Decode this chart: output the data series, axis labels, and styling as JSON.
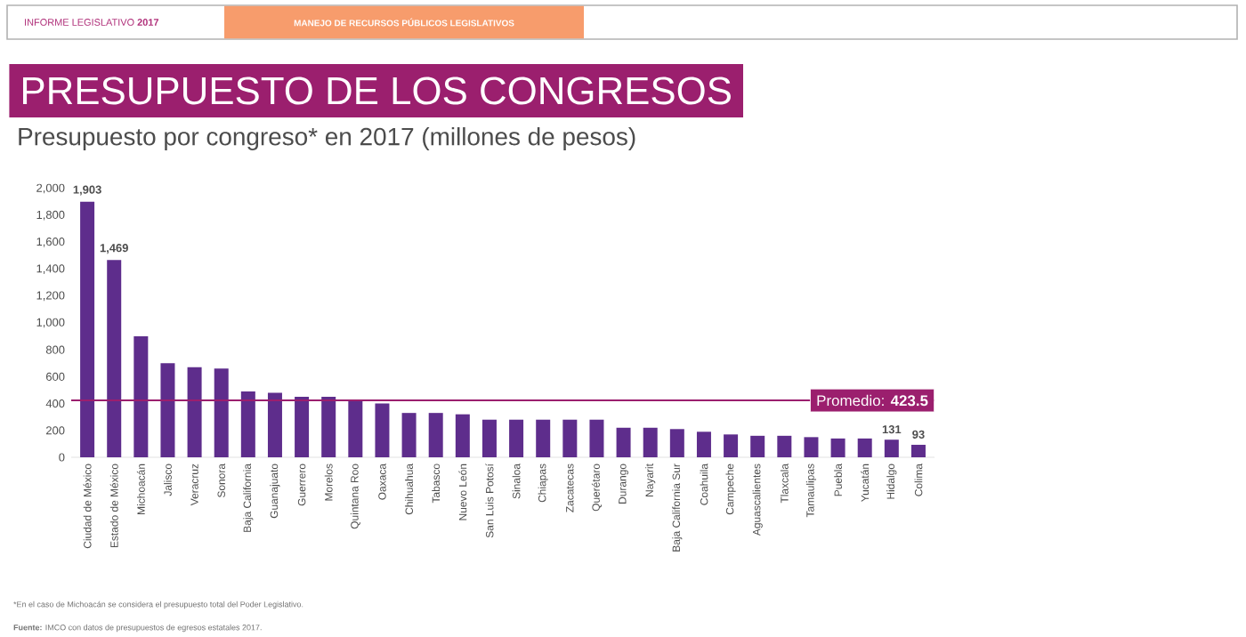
{
  "chart_data": {
    "type": "bar",
    "title": "PRESUPUESTO DE LOS CONGRESOS",
    "subtitle": "Presupuesto por congreso* en 2017 (millones de pesos)",
    "annotations": [
      "INFORME LEGISLATIVO **2017**",
      "MANEJO DE RECURSOS PÚBLICOS LEGISLATIVOS",
      "*En el caso de Michoacán se considera el presupuesto total del Poder Legislativo.",
      "**Fuente:** IMCO con datos de presupuestos de egresos estatales 2017."
    ],
    "categories": [
      "Ciudad de México",
      "Estado de México",
      "Michoacán",
      "Jalisco",
      "Veracruz",
      "Sonora",
      "Baja California",
      "Guanajuato",
      "Guerrero",
      "Morelos",
      "Quintana Roo",
      "Oaxaca",
      "Chihuahua",
      "Tabasco",
      "Nuevo León",
      "San Luis Potosí",
      "Sinaloa",
      "Chiapas",
      "Zacatecas",
      "Querétaro",
      "Durango",
      "Nayarit",
      "Baja California Sur",
      "Coahuila",
      "Campeche",
      "Aguascalientes",
      "Tlaxcala",
      "Tamaulipas",
      "Puebla",
      "Yucatán",
      "Hidalgo",
      "Colima"
    ],
    "values": [
      1903,
      1469,
      900,
      700,
      670,
      660,
      490,
      480,
      450,
      450,
      420,
      400,
      330,
      330,
      320,
      280,
      280,
      280,
      280,
      280,
      220,
      220,
      210,
      190,
      170,
      160,
      160,
      150,
      140,
      140,
      131,
      93
    ],
    "value_labels": [
      "1,903",
      "1,469",
      null,
      null,
      null,
      null,
      null,
      null,
      null,
      null,
      null,
      null,
      null,
      null,
      null,
      null,
      null,
      null,
      null,
      null,
      null,
      null,
      null,
      null,
      null,
      null,
      null,
      null,
      null,
      null,
      "131",
      "93"
    ],
    "color": "#5e2d8c",
    "ylim": [
      0,
      2000
    ],
    "yticks": [
      0,
      200,
      400,
      600,
      800,
      {
        "value": 1000,
        "label": "1,000"
      },
      {
        "value": 1200,
        "label": "1,200"
      },
      {
        "value": 1400,
        "label": "1,400"
      },
      {
        "value": 1600,
        "label": "1,600"
      },
      {
        "value": 1800,
        "label": "1,800"
      },
      {
        "value": 2000,
        "label": "2,000"
      }
    ],
    "ref_lines": [
      {
        "axis": "y",
        "value": 423.5,
        "label": "Promedio: **423.5**",
        "color": "#9b1f6e"
      }
    ],
    "ylabel": null
  }
}
